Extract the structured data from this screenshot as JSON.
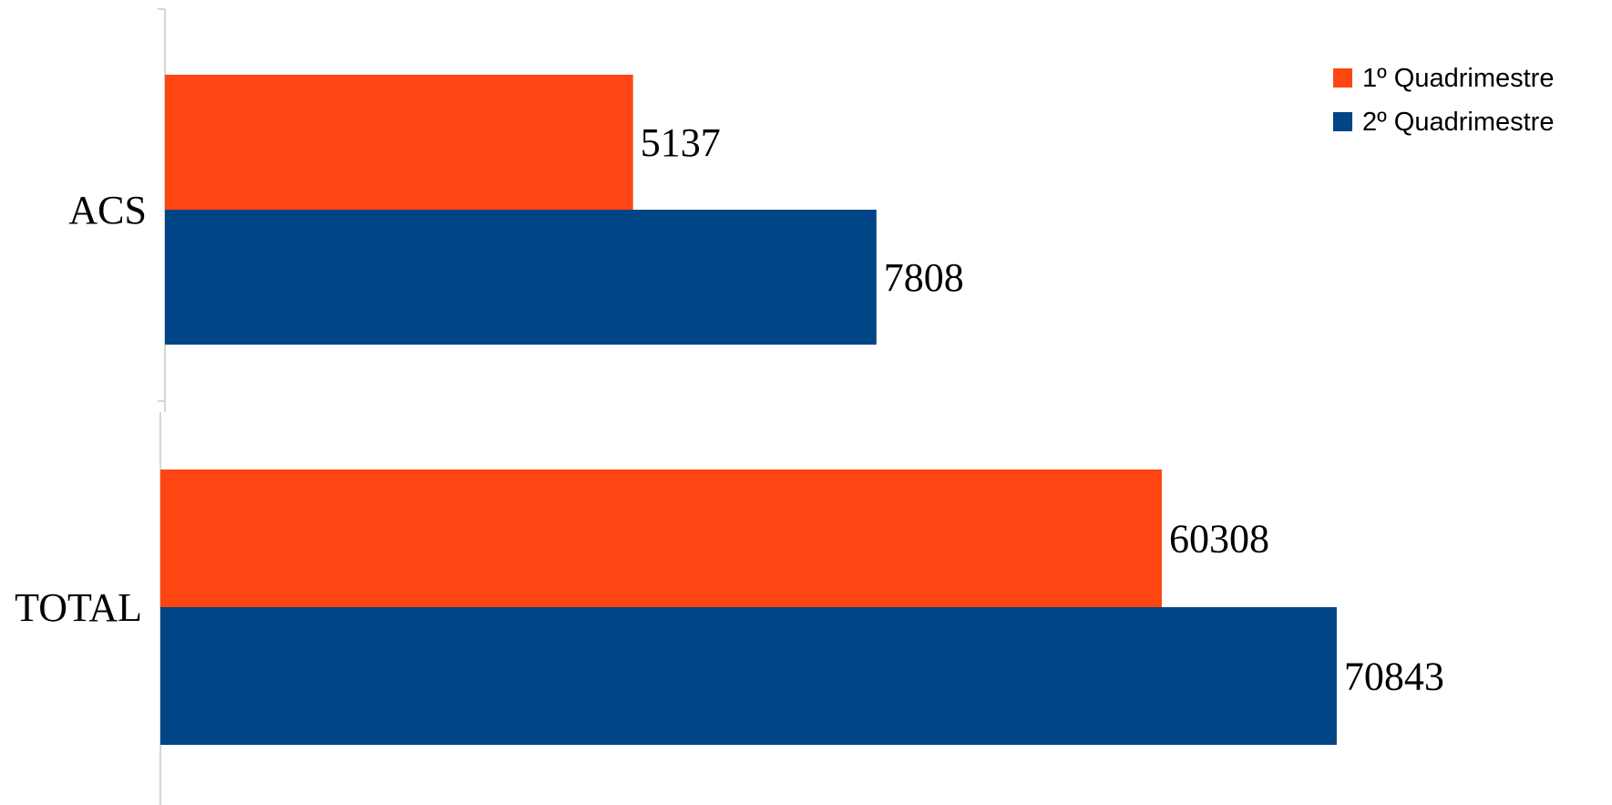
{
  "chart_data": {
    "type": "bar",
    "orientation": "horizontal",
    "categories": [
      "ACS",
      "TOTAL"
    ],
    "series": [
      {
        "name": "1º Quadrimestre",
        "color": "#FF4512",
        "values": [
          5137,
          60308
        ]
      },
      {
        "name": "2º Quadrimestre",
        "color": "#004586",
        "values": [
          7808,
          70843
        ]
      }
    ],
    "category_scales": [
      {
        "category": "ACS",
        "xlim": [
          0,
          10000
        ]
      },
      {
        "category": "TOTAL",
        "xlim": [
          0,
          81000
        ]
      }
    ],
    "data_labels": true,
    "legend_position": "top-right",
    "grid": false,
    "title": "",
    "xlabel": "",
    "ylabel": ""
  }
}
